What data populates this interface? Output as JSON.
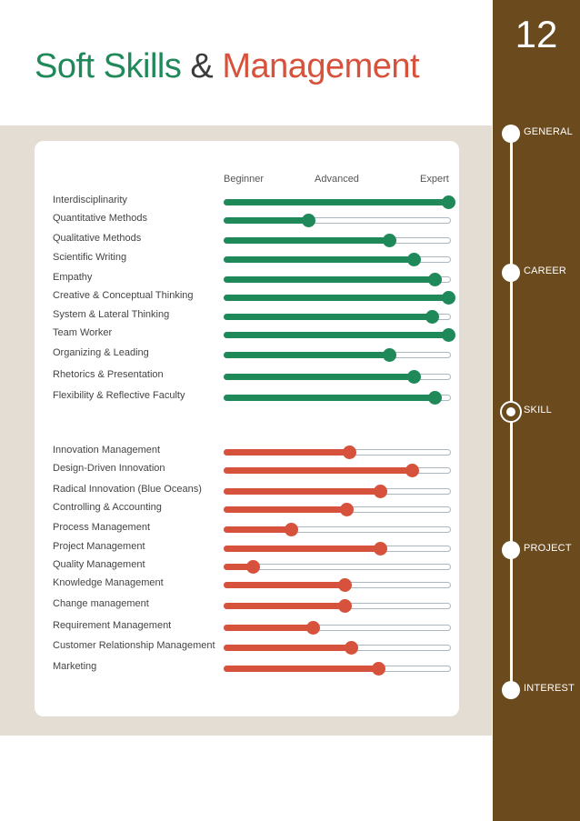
{
  "page": {
    "number": "12",
    "title_part1": "Soft Skills",
    "title_amp": "&",
    "title_part2": "Management"
  },
  "colors": {
    "green": "#20895a",
    "red": "#d6523c",
    "brown": "#6b4a1e",
    "band": "#e4ddd4"
  },
  "scale": {
    "beginner": "Beginner",
    "advanced": "Advanced",
    "expert": "Expert"
  },
  "nav": [
    {
      "label": "GENERAL",
      "active": false
    },
    {
      "label": "CAREER",
      "active": false
    },
    {
      "label": "SKILL",
      "active": true
    },
    {
      "label": "PROJECT",
      "active": false
    },
    {
      "label": "INTEREST",
      "active": false
    }
  ],
  "soft_skills": [
    {
      "label": "Interdisciplinarity",
      "level": 1.0
    },
    {
      "label": "Quantitative Methods",
      "level": 0.38
    },
    {
      "label": "Qualitative Methods",
      "level": 0.74
    },
    {
      "label": "Scientific Writing",
      "level": 0.85
    },
    {
      "label": "Empathy",
      "level": 0.94
    },
    {
      "label": "Creative & Conceptual Thinking",
      "level": 1.0
    },
    {
      "label": "System & Lateral Thinking",
      "level": 0.93
    },
    {
      "label": "Team Worker",
      "level": 1.0
    },
    {
      "label": "Organizing & Leading",
      "level": 0.74
    },
    {
      "label": "Rhetorics & Presentation",
      "level": 0.85
    },
    {
      "label": "Flexibility & Reflective Faculty",
      "level": 0.94
    }
  ],
  "management": [
    {
      "label": "Innovation Management",
      "level": 0.56
    },
    {
      "label": "Design-Driven Innovation",
      "level": 0.84
    },
    {
      "label": "Radical Innovation (Blue Oceans)",
      "level": 0.7
    },
    {
      "label": "Controlling & Accounting",
      "level": 0.55
    },
    {
      "label": "Process Management",
      "level": 0.3
    },
    {
      "label": "Project Management",
      "level": 0.7
    },
    {
      "label": "Quality Management",
      "level": 0.13
    },
    {
      "label": "Knowledge Management",
      "level": 0.54
    },
    {
      "label": "Change management",
      "level": 0.54
    },
    {
      "label": "Requirement Management",
      "level": 0.4
    },
    {
      "label": "Customer Relationship Management",
      "level": 0.57
    },
    {
      "label": "Marketing",
      "level": 0.69
    }
  ]
}
